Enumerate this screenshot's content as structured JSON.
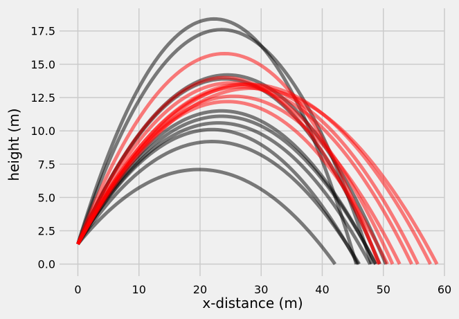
{
  "chart_data": {
    "type": "line",
    "title": "",
    "xlabel": "x-distance (m)",
    "ylabel": "height (m)",
    "xlim": [
      -3,
      60
    ],
    "ylim": [
      -0.9,
      19.2
    ],
    "xticks": [
      0,
      10,
      20,
      30,
      40,
      50,
      60
    ],
    "xtick_labels": [
      "0",
      "10",
      "20",
      "30",
      "40",
      "50",
      "60"
    ],
    "yticks": [
      0.0,
      2.5,
      5.0,
      7.5,
      10.0,
      12.5,
      15.0,
      17.5
    ],
    "ytick_labels": [
      "0.0",
      "2.5",
      "5.0",
      "7.5",
      "10.0",
      "12.5",
      "15.0",
      "17.5"
    ],
    "grid": true,
    "legend": "none",
    "colors": {
      "black_series": "#000000",
      "red_series": "#ff0000",
      "background": "#f0f0f0",
      "grid": "#cbcbcb"
    },
    "launch_height": 1.5,
    "series": [
      {
        "color": "#000000",
        "peak_x": 19.8,
        "peak_y": 7.1,
        "range": 41.8
      },
      {
        "color": "#000000",
        "peak_x": 22.0,
        "peak_y": 9.2,
        "range": 45.0
      },
      {
        "color": "#000000",
        "peak_x": 22.0,
        "peak_y": 10.1,
        "range": 46.5
      },
      {
        "color": "#000000",
        "peak_x": 23.0,
        "peak_y": 10.6,
        "range": 48.5
      },
      {
        "color": "#000000",
        "peak_x": 23.5,
        "peak_y": 11.1,
        "range": 49.0
      },
      {
        "color": "#000000",
        "peak_x": 23.5,
        "peak_y": 11.5,
        "range": 50.5
      },
      {
        "color": "#000000",
        "peak_x": 24.0,
        "peak_y": 13.9,
        "range": 48.0
      },
      {
        "color": "#000000",
        "peak_x": 24.5,
        "peak_y": 14.2,
        "range": 51.5
      },
      {
        "color": "#000000",
        "peak_x": 23.5,
        "peak_y": 17.6,
        "range": 45.5
      },
      {
        "color": "#000000",
        "peak_x": 22.3,
        "peak_y": 18.4,
        "range": 44.2
      },
      {
        "color": "#ff0000",
        "peak_x": 24.0,
        "peak_y": 15.8,
        "range": 46.3
      },
      {
        "color": "#ff0000",
        "peak_x": 24.0,
        "peak_y": 14.0,
        "range": 47.5
      },
      {
        "color": "#ff0000",
        "peak_x": 25.0,
        "peak_y": 13.6,
        "range": 49.5
      },
      {
        "color": "#ff0000",
        "peak_x": 26.5,
        "peak_y": 13.3,
        "range": 52.0
      },
      {
        "color": "#ff0000",
        "peak_x": 27.0,
        "peak_y": 13.5,
        "range": 54.5
      },
      {
        "color": "#ff0000",
        "peak_x": 28.0,
        "peak_y": 13.5,
        "range": 56.5
      },
      {
        "color": "#ff0000",
        "peak_x": 28.5,
        "peak_y": 13.2,
        "range": 57.2
      },
      {
        "color": "#ff0000",
        "peak_x": 25.5,
        "peak_y": 12.6,
        "range": 51.0
      },
      {
        "color": "#ff0000",
        "peak_x": 24.5,
        "peak_y": 12.2,
        "range": 49.5
      }
    ]
  }
}
